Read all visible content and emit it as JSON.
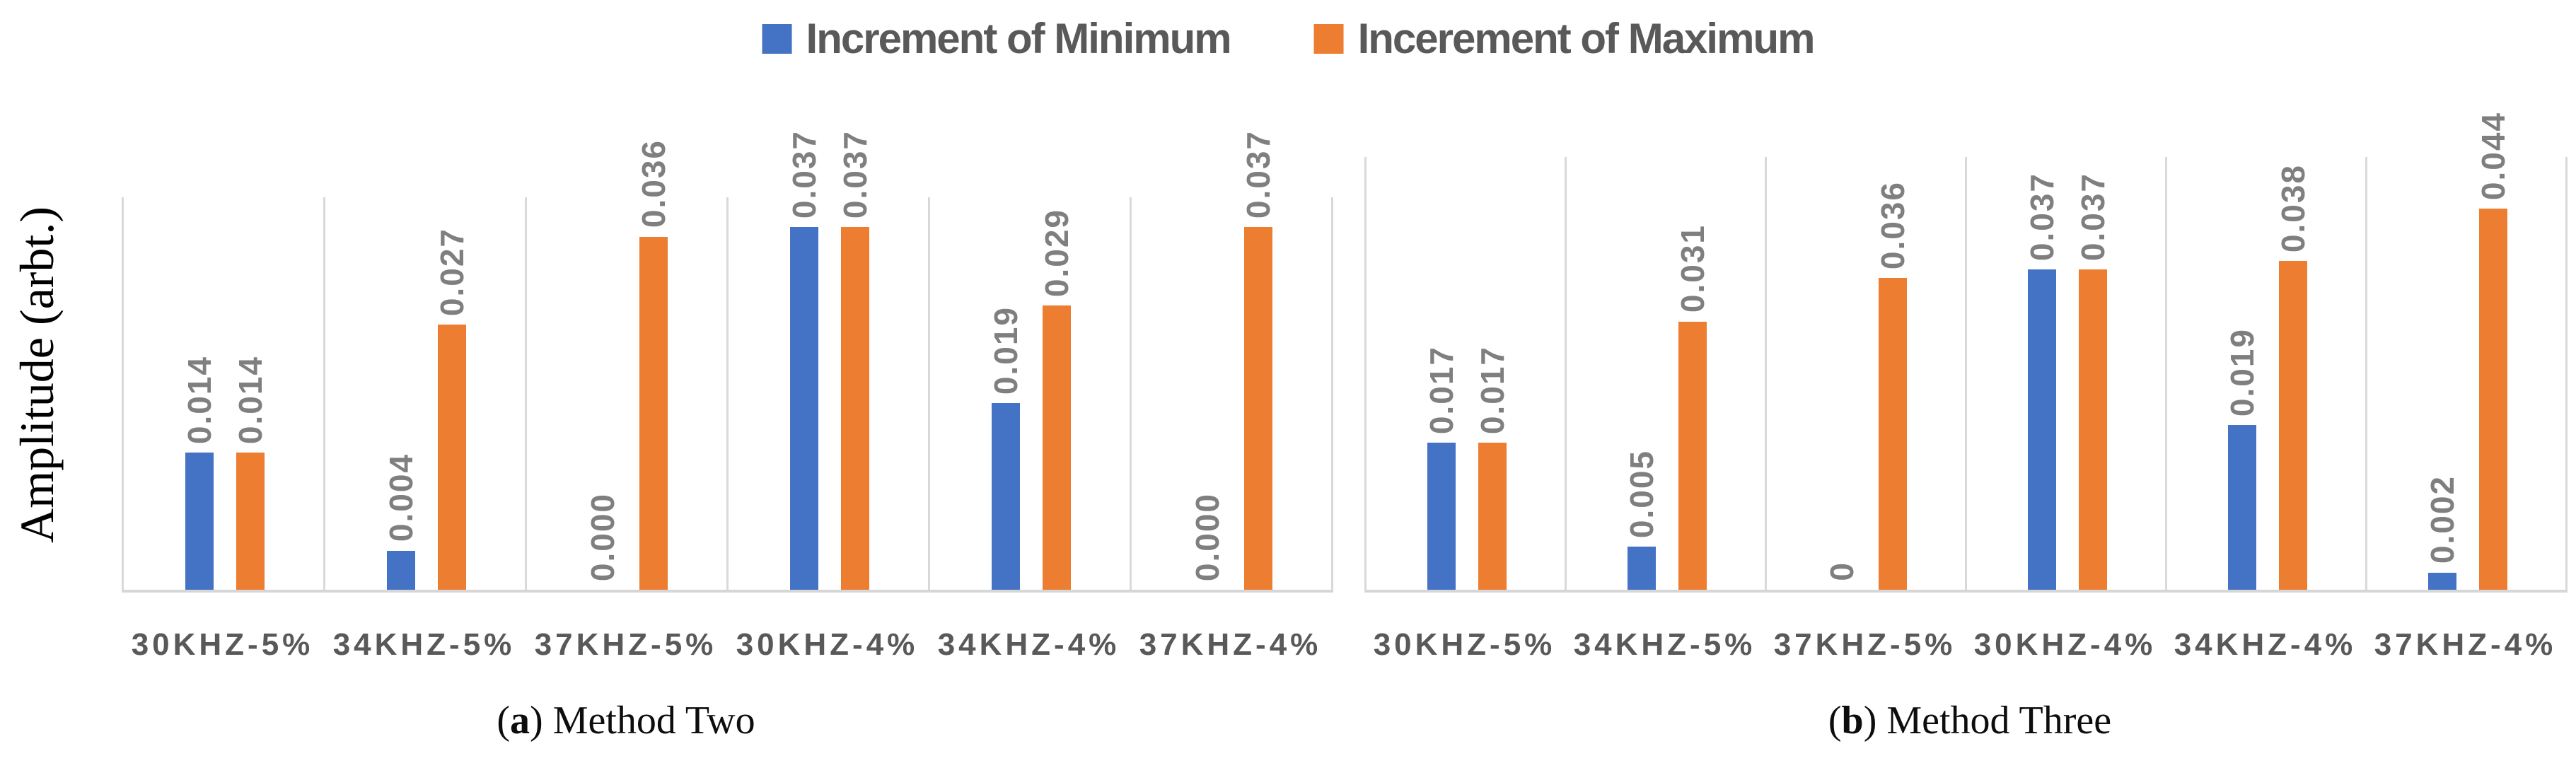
{
  "legend": {
    "items": [
      {
        "label": "Increment of Minimum",
        "color": "#4472C4",
        "icon": "blue-square-swatch"
      },
      {
        "label": "Incerement of Maximum",
        "color": "#ED7D31",
        "icon": "orange-square-swatch"
      }
    ]
  },
  "y_axis_label": "Amplitude (arbt.)",
  "caption_a": {
    "open": "(",
    "letter": "a",
    "close": ")",
    "text": "Method Two"
  },
  "caption_b": {
    "open": "(",
    "letter": "b",
    "close": ")",
    "text": "Method Three"
  },
  "colors": {
    "series_minimum": "#4472C4",
    "series_maximum": "#ED7D31",
    "gridline": "#d9d9d9",
    "axis_line": "#d6d6d6",
    "data_label": "#7f7f7f",
    "category_label": "#595959",
    "legend_text": "#595959"
  },
  "chart_data": [
    {
      "type": "bar",
      "panel_label": "a",
      "title": "Method Two",
      "categories": [
        "30KHZ-5%",
        "34KHZ-5%",
        "37KHZ-5%",
        "30KHZ-4%",
        "34KHZ-4%",
        "37KHZ-4%"
      ],
      "series": [
        {
          "name": "Increment of Minimum",
          "color": "#4472C4",
          "values": [
            0.014,
            0.004,
            0.0,
            0.037,
            0.019,
            0.0
          ],
          "labels": [
            "0.014",
            "0.004",
            "0.000",
            "0.037",
            "0.019",
            "0.000"
          ]
        },
        {
          "name": "Incerement of Maximum",
          "color": "#ED7D31",
          "values": [
            0.014,
            0.027,
            0.036,
            0.037,
            0.029,
            0.037
          ],
          "labels": [
            "0.014",
            "0.027",
            "0.036",
            "0.037",
            "0.029",
            "0.037"
          ]
        }
      ],
      "ylabel": "Amplitude (arbt.)",
      "ylim": [
        0,
        0.04
      ],
      "grid": "vertical-category-separators",
      "legend_position": "top-shared",
      "value_labels": "rotated-90-above-bars"
    },
    {
      "type": "bar",
      "panel_label": "b",
      "title": "Method Three",
      "categories": [
        "30KHZ-5%",
        "34KHZ-5%",
        "37KHZ-5%",
        "30KHZ-4%",
        "34KHZ-4%",
        "37KHZ-4%"
      ],
      "series": [
        {
          "name": "Increment of Minimum",
          "color": "#4472C4",
          "values": [
            0.017,
            0.005,
            0,
            0.037,
            0.019,
            0.002
          ],
          "labels": [
            "0.017",
            "0.005",
            "0",
            "0.037",
            "0.019",
            "0.002"
          ]
        },
        {
          "name": "Incerement of Maximum",
          "color": "#ED7D31",
          "values": [
            0.017,
            0.031,
            0.036,
            0.037,
            0.038,
            0.044
          ],
          "labels": [
            "0.017",
            "0.031",
            "0.036",
            "0.037",
            "0.038",
            "0.044"
          ]
        }
      ],
      "ylabel": "Amplitude (arbt.)",
      "ylim": [
        0,
        0.05
      ],
      "grid": "vertical-category-separators",
      "legend_position": "top-shared",
      "value_labels": "rotated-90-above-bars"
    }
  ]
}
